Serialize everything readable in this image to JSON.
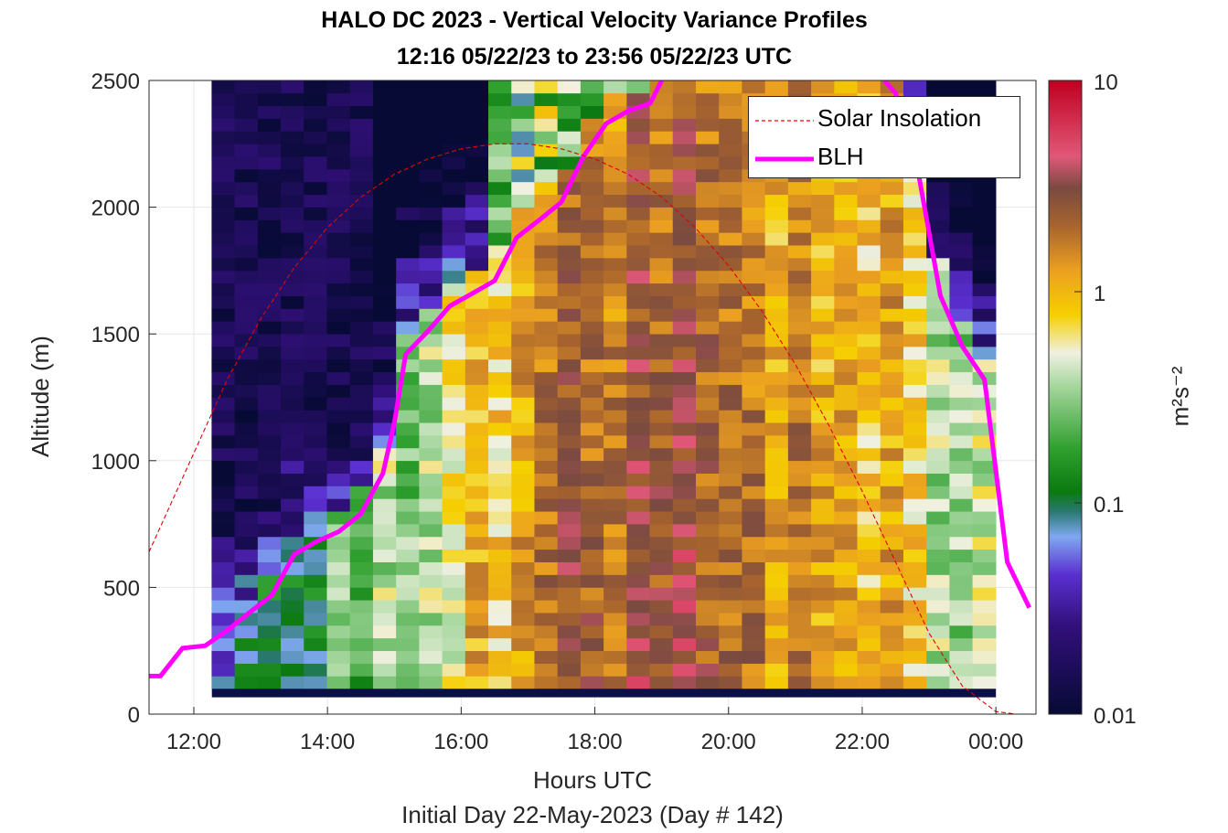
{
  "title": {
    "line1": "HALO DC 2023 - Vertical Velocity Variance Profiles",
    "line2": "12:16 05/22/23 to 23:56 05/22/23  UTC"
  },
  "xlabel": "Hours UTC",
  "subtitle": "Initial Day 22-May-2023 (Day # 142)",
  "ylabel": "Altitude (m)",
  "colorbar": {
    "label": "m²s⁻²",
    "ticks": [
      "0.01",
      "0.1",
      "1",
      "10"
    ],
    "scale": "log",
    "range": [
      0.01,
      10
    ]
  },
  "legend": {
    "position": "top-right",
    "items": [
      {
        "label": "Solar Insolation",
        "color": "#ff0000",
        "style": "dashed"
      },
      {
        "label": "BLH",
        "color": "#ff00ff",
        "style": "solid"
      }
    ]
  },
  "colors": {
    "solar": "#e00000",
    "blh": "#ff00ff",
    "background": "#ffffff",
    "nodata_fill": "#0a1045"
  },
  "chart_data": {
    "type": "heatmap",
    "title": "HALO DC 2023 - Vertical Velocity Variance Profiles",
    "xlabel": "Hours UTC",
    "ylabel": "Altitude (m)",
    "x_unit": "hours UTC (values past 24 wrap to 00:xx next day)",
    "xlim": [
      11.33,
      24.6
    ],
    "ylim": [
      0,
      2500
    ],
    "xticks": [
      12,
      14,
      16,
      18,
      20,
      22,
      24
    ],
    "xtick_labels": [
      "12:00",
      "14:00",
      "16:00",
      "18:00",
      "20:00",
      "22:00",
      "00:00"
    ],
    "yticks": [
      0,
      500,
      1000,
      1500,
      2000,
      2500
    ],
    "ytick_labels": [
      "0",
      "500",
      "1000",
      "1500",
      "2000",
      "2500"
    ],
    "grid": true,
    "heatmap": {
      "x_start": 12.27,
      "x_end": 24.0,
      "x_columns": 34,
      "y_start": 100,
      "y_end": 2500,
      "y_rows": 48,
      "value_unit": "m^2 s^-2",
      "color_scale": "log10",
      "note_values": "variance peaks near 1-3 m2s-2 from 16:00 to 21:00 below the BLH, highest (~5-8) near 18:45 at 500-1000 m; low (~0.01) above BLH and before 14:30"
    },
    "series": [
      {
        "name": "BLH",
        "x": [
          11.33,
          11.5,
          11.83,
          12.17,
          12.5,
          12.83,
          13.17,
          13.5,
          13.83,
          14.17,
          14.5,
          14.83,
          15.0,
          15.17,
          15.5,
          15.83,
          16.17,
          16.5,
          16.83,
          17.17,
          17.5,
          17.83,
          18.17,
          18.5,
          18.83,
          19.0
        ],
        "y": [
          150,
          150,
          260,
          270,
          330,
          400,
          470,
          630,
          680,
          720,
          790,
          950,
          1150,
          1420,
          1510,
          1610,
          1660,
          1710,
          1880,
          1950,
          2020,
          2200,
          2330,
          2380,
          2410,
          2500
        ]
      },
      {
        "name": "BLH",
        "x": [
          22.33,
          22.5,
          22.83,
          23.17,
          23.5,
          23.83,
          24.17,
          24.5
        ],
        "y": [
          2500,
          2450,
          2150,
          1650,
          1450,
          1320,
          600,
          420
        ]
      },
      {
        "name": "Solar Insolation",
        "style": "dashed",
        "x": [
          11.33,
          12.0,
          12.5,
          13.0,
          13.5,
          14.0,
          14.5,
          15.0,
          15.5,
          16.0,
          16.5,
          17.0,
          17.5,
          18.0,
          18.5,
          19.0,
          19.5,
          20.0,
          20.5,
          21.0,
          21.5,
          22.0,
          22.5,
          23.0,
          23.5,
          24.0,
          24.3,
          24.6
        ],
        "y": [
          640,
          1030,
          1320,
          1560,
          1760,
          1920,
          2040,
          2130,
          2190,
          2230,
          2250,
          2250,
          2230,
          2190,
          2130,
          2040,
          1920,
          1770,
          1590,
          1380,
          1140,
          880,
          600,
          320,
          110,
          10,
          0,
          0
        ]
      }
    ]
  }
}
